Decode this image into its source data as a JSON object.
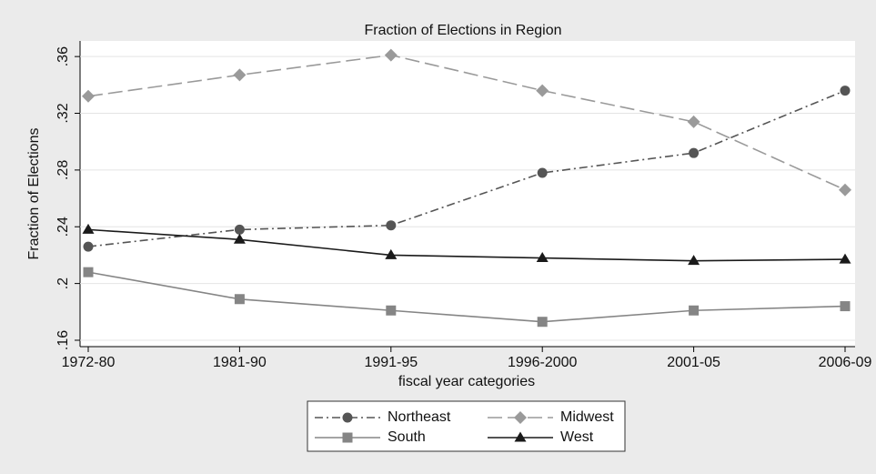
{
  "chart_data": {
    "type": "line",
    "title": "Fraction of Elections in Region",
    "x_label": "fiscal year categories",
    "y_label": "Fraction of Elections",
    "categories": [
      "1972-80",
      "1981-90",
      "1991-95",
      "1996-2000",
      "2001-05",
      "2006-09"
    ],
    "series": [
      {
        "name": "Northeast",
        "color": "#555555",
        "marker": "circle",
        "line_style": "dashdot",
        "values": [
          0.226,
          0.238,
          0.241,
          0.278,
          0.292,
          0.336
        ]
      },
      {
        "name": "Midwest",
        "color": "#9a9a9a",
        "marker": "diamond",
        "line_style": "longdash",
        "values": [
          0.332,
          0.347,
          0.361,
          0.336,
          0.314,
          0.266
        ]
      },
      {
        "name": "South",
        "color": "#858585",
        "marker": "square",
        "line_style": "solid",
        "values": [
          0.208,
          0.189,
          0.181,
          0.173,
          0.181,
          0.184
        ]
      },
      {
        "name": "West",
        "color": "#1a1a1a",
        "marker": "triangle",
        "line_style": "solid",
        "values": [
          0.238,
          0.231,
          0.22,
          0.218,
          0.216,
          0.217
        ]
      }
    ],
    "ylim": [
      0.1555,
      0.371
    ],
    "yticks": [
      {
        "value": 0.16,
        "label": ".16"
      },
      {
        "value": 0.2,
        "label": ".2"
      },
      {
        "value": 0.24,
        "label": ".24"
      },
      {
        "value": 0.28,
        "label": ".28"
      },
      {
        "value": 0.32,
        "label": ".32"
      },
      {
        "value": 0.36,
        "label": ".36"
      }
    ],
    "grid": true,
    "legend_position": "bottom"
  }
}
